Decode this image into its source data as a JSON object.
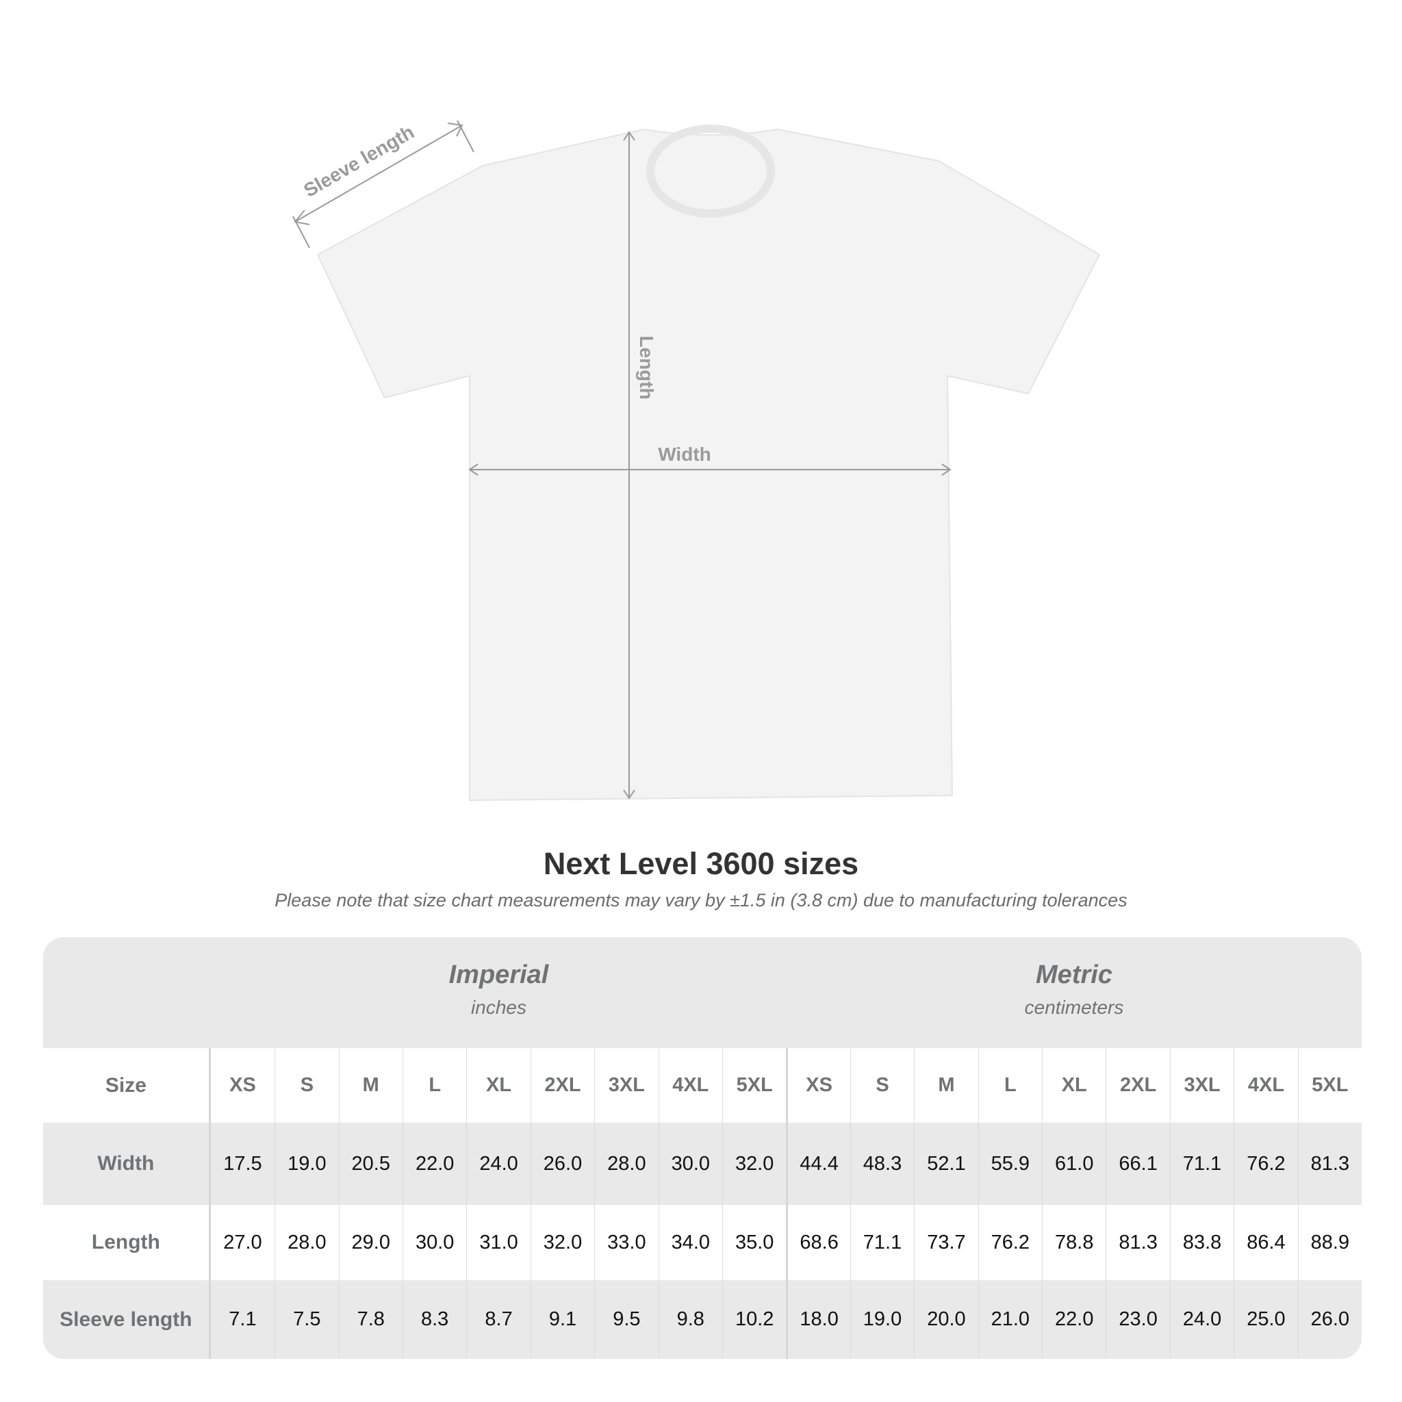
{
  "diagram": {
    "labels": {
      "sleeve": "Sleeve length",
      "length": "Length",
      "width": "Width"
    },
    "colors": {
      "shirt": "#f3f3f3",
      "measure_line": "#9a9a9a"
    }
  },
  "title": "Next Level 3600 sizes",
  "subtitle": "Please note that size chart measurements may vary by ±1.5 in (3.8 cm) due to manufacturing tolerances",
  "table": {
    "imperial": {
      "name": "Imperial",
      "unit": "inches"
    },
    "metric": {
      "name": "Metric",
      "unit": "centimeters"
    },
    "size_label": "Size",
    "sizes": [
      "XS",
      "S",
      "M",
      "L",
      "XL",
      "2XL",
      "3XL",
      "4XL",
      "5XL"
    ],
    "rows": [
      {
        "label": "Width",
        "imperial": [
          "17.5",
          "19.0",
          "20.5",
          "22.0",
          "24.0",
          "26.0",
          "28.0",
          "30.0",
          "32.0"
        ],
        "metric": [
          "44.4",
          "48.3",
          "52.1",
          "55.9",
          "61.0",
          "66.1",
          "71.1",
          "76.2",
          "81.3"
        ]
      },
      {
        "label": "Length",
        "imperial": [
          "27.0",
          "28.0",
          "29.0",
          "30.0",
          "31.0",
          "32.0",
          "33.0",
          "34.0",
          "35.0"
        ],
        "metric": [
          "68.6",
          "71.1",
          "73.7",
          "76.2",
          "78.8",
          "81.3",
          "83.8",
          "86.4",
          "88.9"
        ]
      },
      {
        "label": "Sleeve length",
        "imperial": [
          "7.1",
          "7.5",
          "7.8",
          "8.3",
          "8.7",
          "9.1",
          "9.5",
          "9.8",
          "10.2"
        ],
        "metric": [
          "18.0",
          "19.0",
          "20.0",
          "21.0",
          "22.0",
          "23.0",
          "24.0",
          "25.0",
          "26.0"
        ]
      }
    ]
  }
}
